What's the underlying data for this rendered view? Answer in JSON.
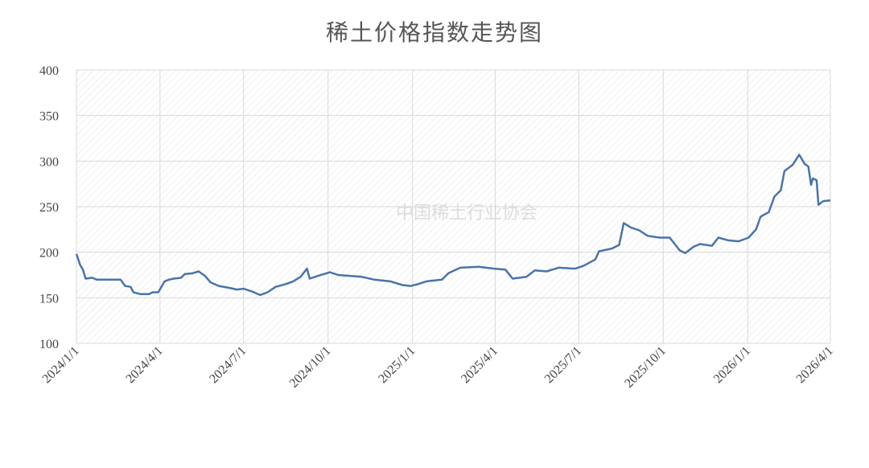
{
  "chart_data": {
    "type": "line",
    "title": "稀土价格指数走势图",
    "watermark": "中国稀土行业协会",
    "x": [
      "2024/1/1",
      "2024/1/5",
      "2024/1/8",
      "2024/1/11",
      "2024/1/18",
      "2024/1/23",
      "2024/2/18",
      "2024/2/23",
      "2024/2/29",
      "2024/3/3",
      "2024/3/11",
      "2024/3/20",
      "2024/3/24",
      "2024/3/30",
      "2024/4/6",
      "2024/4/11",
      "2024/4/16",
      "2024/4/24",
      "2024/4/28",
      "2024/5/7",
      "2024/5/13",
      "2024/5/20",
      "2024/5/26",
      "2024/6/4",
      "2024/6/15",
      "2024/6/24",
      "2024/7/1",
      "2024/7/10",
      "2024/7/19",
      "2024/7/27",
      "2024/8/5",
      "2024/8/16",
      "2024/8/24",
      "2024/9/1",
      "2024/9/8",
      "2024/9/11",
      "2024/9/20",
      "2024/10/3",
      "2024/10/12",
      "2024/10/25",
      "2024/11/7",
      "2024/11/20",
      "2024/12/8",
      "2024/12/21",
      "2024/12/30",
      "2025/1/7",
      "2025/1/16",
      "2025/2/2",
      "2025/2/9",
      "2025/2/22",
      "2025/3/14",
      "2025/3/31",
      "2025/4/12",
      "2025/4/20",
      "2025/5/5",
      "2025/5/14",
      "2025/5/27",
      "2025/6/9",
      "2025/6/27",
      "2025/7/6",
      "2025/7/19",
      "2025/7/23",
      "2025/8/6",
      "2025/8/14",
      "2025/8/19",
      "2025/8/27",
      "2025/9/5",
      "2025/9/14",
      "2025/9/27",
      "2025/10/8",
      "2025/10/19",
      "2025/10/25",
      "2025/11/3",
      "2025/11/10",
      "2025/11/23",
      "2025/11/30",
      "2025/12/11",
      "2025/12/22",
      "2026/1/2",
      "2026/1/10",
      "2026/1/15",
      "2026/1/24",
      "2026/1/30",
      "2026/2/6",
      "2026/2/10",
      "2026/2/19",
      "2026/2/26",
      "2026/3/4",
      "2026/3/8",
      "2026/3/11",
      "2026/3/13",
      "2026/3/17",
      "2026/3/19",
      "2026/3/24",
      "2026/4/1"
    ],
    "series": [
      {
        "name": "稀土价格指数",
        "color": "#4a74a8",
        "values": [
          198,
          186,
          181,
          171,
          172,
          170,
          170,
          163,
          162,
          156,
          154,
          154,
          156,
          156,
          168,
          170,
          171,
          172,
          176,
          177,
          179,
          174,
          167,
          163,
          161,
          159,
          160,
          157,
          153,
          156,
          162,
          165,
          168,
          173,
          182,
          171,
          174,
          178,
          175,
          174,
          173,
          170,
          168,
          164,
          163,
          165,
          168,
          170,
          177,
          183,
          184,
          182,
          181,
          171,
          173,
          180,
          179,
          183,
          182,
          185,
          192,
          201,
          204,
          208,
          232,
          227,
          224,
          218,
          216,
          216,
          202,
          199,
          206,
          209,
          207,
          216,
          213,
          212,
          216,
          225,
          239,
          244,
          261,
          268,
          289,
          296,
          307,
          297,
          294,
          274,
          281,
          279,
          252,
          256,
          257
        ]
      }
    ],
    "xlim": [
      "2024/1/1",
      "2026/4/1"
    ],
    "xticks": [
      "2024/1/1",
      "2024/4/1",
      "2024/7/1",
      "2024/10/1",
      "2025/1/1",
      "2025/4/1",
      "2025/7/1",
      "2025/10/1",
      "2026/1/1",
      "2026/4/1"
    ],
    "ylim": [
      100,
      400
    ],
    "yticks": [
      100,
      150,
      200,
      250,
      300,
      350,
      400
    ],
    "grid": true
  }
}
